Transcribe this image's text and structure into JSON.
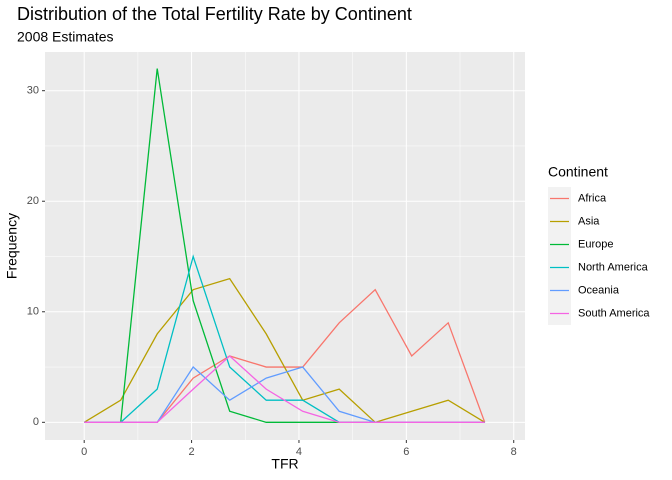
{
  "chart_data": {
    "type": "line",
    "title": "Distribution of the Total Fertility Rate by Continent",
    "subtitle": "2008 Estimates",
    "x_label": "TFR",
    "y_label": "Frequency",
    "legend_title": "Continent",
    "legend_position": "right",
    "grid": true,
    "x": [
      0,
      0.68,
      1.36,
      2.03,
      2.71,
      3.39,
      4.07,
      4.75,
      5.42,
      6.1,
      6.78,
      7.46
    ],
    "xlim": [
      -0.73,
      8.21
    ],
    "xticks": [
      0,
      2,
      4,
      6,
      8
    ],
    "ylim": [
      -1.6,
      33.5
    ],
    "yticks": [
      0,
      10,
      20,
      30
    ],
    "series": [
      {
        "name": "Africa",
        "color": "#F8766D",
        "values": [
          0,
          0,
          0,
          4,
          6,
          5,
          5,
          9,
          12,
          6,
          9,
          0
        ]
      },
      {
        "name": "Asia",
        "color": "#B79F00",
        "values": [
          0,
          2,
          8,
          12,
          13,
          8,
          2,
          3,
          0,
          1,
          2,
          0
        ]
      },
      {
        "name": "Europe",
        "color": "#00BA38",
        "values": [
          0,
          0,
          32,
          11,
          1,
          0,
          0,
          0,
          0,
          0,
          0,
          0
        ]
      },
      {
        "name": "North America",
        "color": "#00BFC4",
        "values": [
          0,
          0,
          3,
          15,
          5,
          2,
          2,
          0,
          0,
          0,
          0,
          0
        ]
      },
      {
        "name": "Oceania",
        "color": "#619CFF",
        "values": [
          0,
          0,
          0,
          5,
          2,
          4,
          5,
          1,
          0,
          0,
          0,
          0
        ]
      },
      {
        "name": "South America",
        "color": "#F564E3",
        "values": [
          0,
          0,
          0,
          3,
          6,
          3,
          1,
          0,
          0,
          0,
          0,
          0
        ]
      }
    ]
  }
}
